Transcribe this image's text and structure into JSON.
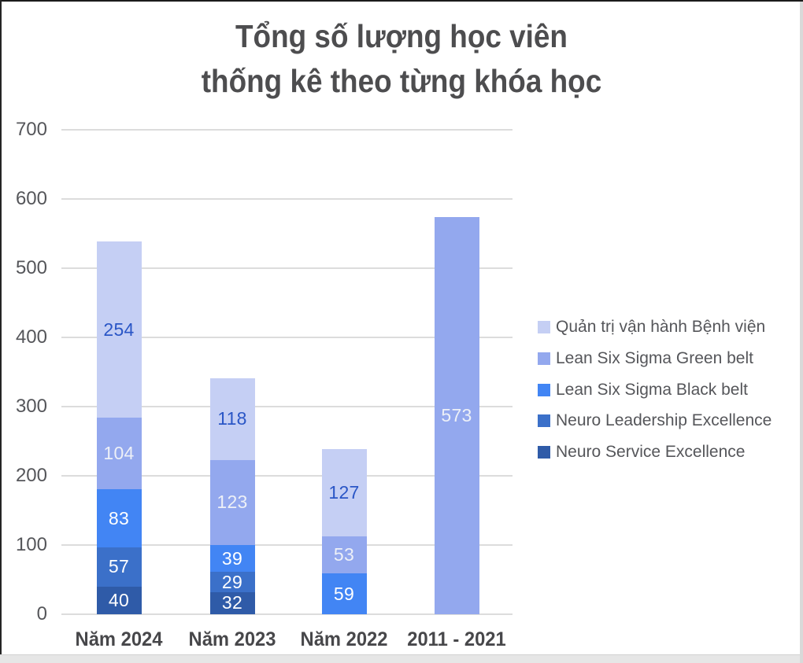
{
  "chart_data": {
    "type": "bar",
    "stacked": true,
    "title": "Tổng số lượng học viên\nthống kê theo từng khóa học",
    "categories": [
      "Năm 2024",
      "Năm 2023",
      "Năm 2022",
      "2011 - 2021"
    ],
    "series": [
      {
        "name": "Neuro Service Excellence",
        "color": "#2f5ba8",
        "label_color": "#ffffff",
        "values": [
          40,
          32,
          0,
          0
        ]
      },
      {
        "name": "Neuro Leadership Excellence",
        "color": "#3b70c9",
        "label_color": "#ffffff",
        "values": [
          57,
          29,
          0,
          0
        ]
      },
      {
        "name": "Lean Six Sigma Black belt",
        "color": "#4285f4",
        "label_color": "#ffffff",
        "values": [
          83,
          39,
          59,
          0
        ]
      },
      {
        "name": "Lean Six Sigma Green belt",
        "color": "#93a8ee",
        "label_color": "#edf0f7",
        "values": [
          104,
          123,
          53,
          573
        ]
      },
      {
        "name": "Quản trị vận hành Bệnh viện",
        "color": "#c5cff4",
        "label_color": "#2a56c6",
        "values": [
          254,
          118,
          127,
          0
        ]
      }
    ],
    "legend_position": "right",
    "legend_order_top_to_bottom": [
      "Quản trị vận hành Bệnh viện",
      "Lean Six Sigma Green belt",
      "Lean Six Sigma Black belt",
      "Neuro Leadership Excellence",
      "Neuro Service Excellence"
    ],
    "ylim": [
      0,
      700
    ],
    "yticks": [
      0,
      100,
      200,
      300,
      400,
      500,
      600,
      700
    ],
    "grid": true,
    "colors": {
      "gridline": "#dcdcdc",
      "title_text": "#4d4d4f",
      "axis_text": "#55565a",
      "category_text": "#47474a",
      "legend_text": "#55565a"
    }
  }
}
